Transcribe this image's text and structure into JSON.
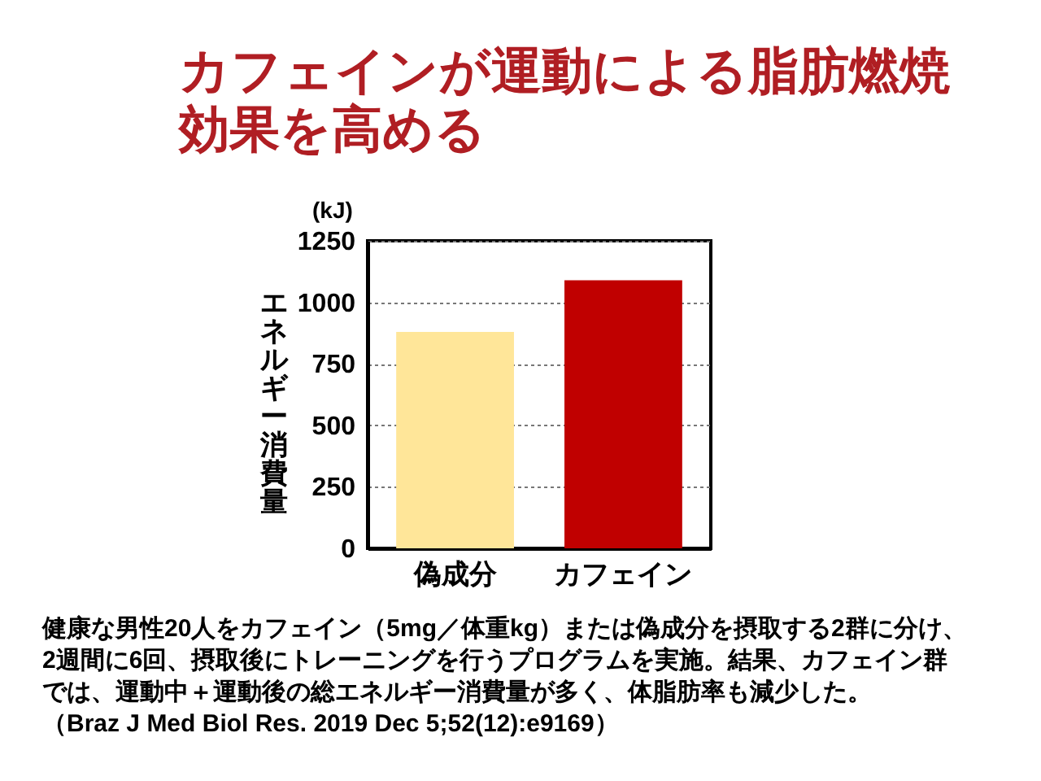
{
  "chart_data": {
    "type": "bar",
    "title": "カフェインが運動による脂肪燃焼効果を高める",
    "ylabel": "エネルギー消費量",
    "categories": [
      "偽成分",
      "カフェイン"
    ],
    "values": [
      880,
      1090
    ],
    "colors": [
      "#ffe699",
      "#c00000"
    ],
    "ylim": [
      0,
      1250
    ],
    "yticks": [
      0,
      250,
      500,
      750,
      1000,
      1250
    ],
    "grid": "y",
    "annotations": [
      "(kJ)",
      "健康な男性20人をカフェイン（5mg／体重kg）または偽成分を摂取する2群に分け、2週間に6回、摂取後にトレーニングを行うプログラムを実施。結果、カフェイン群では、運動中＋運動後の総エネルギー消費量が多く、体脂肪率も減少した。",
      "（Braz J Med Biol Res. 2019 Dec 5;52(12):e9169）"
    ]
  }
}
